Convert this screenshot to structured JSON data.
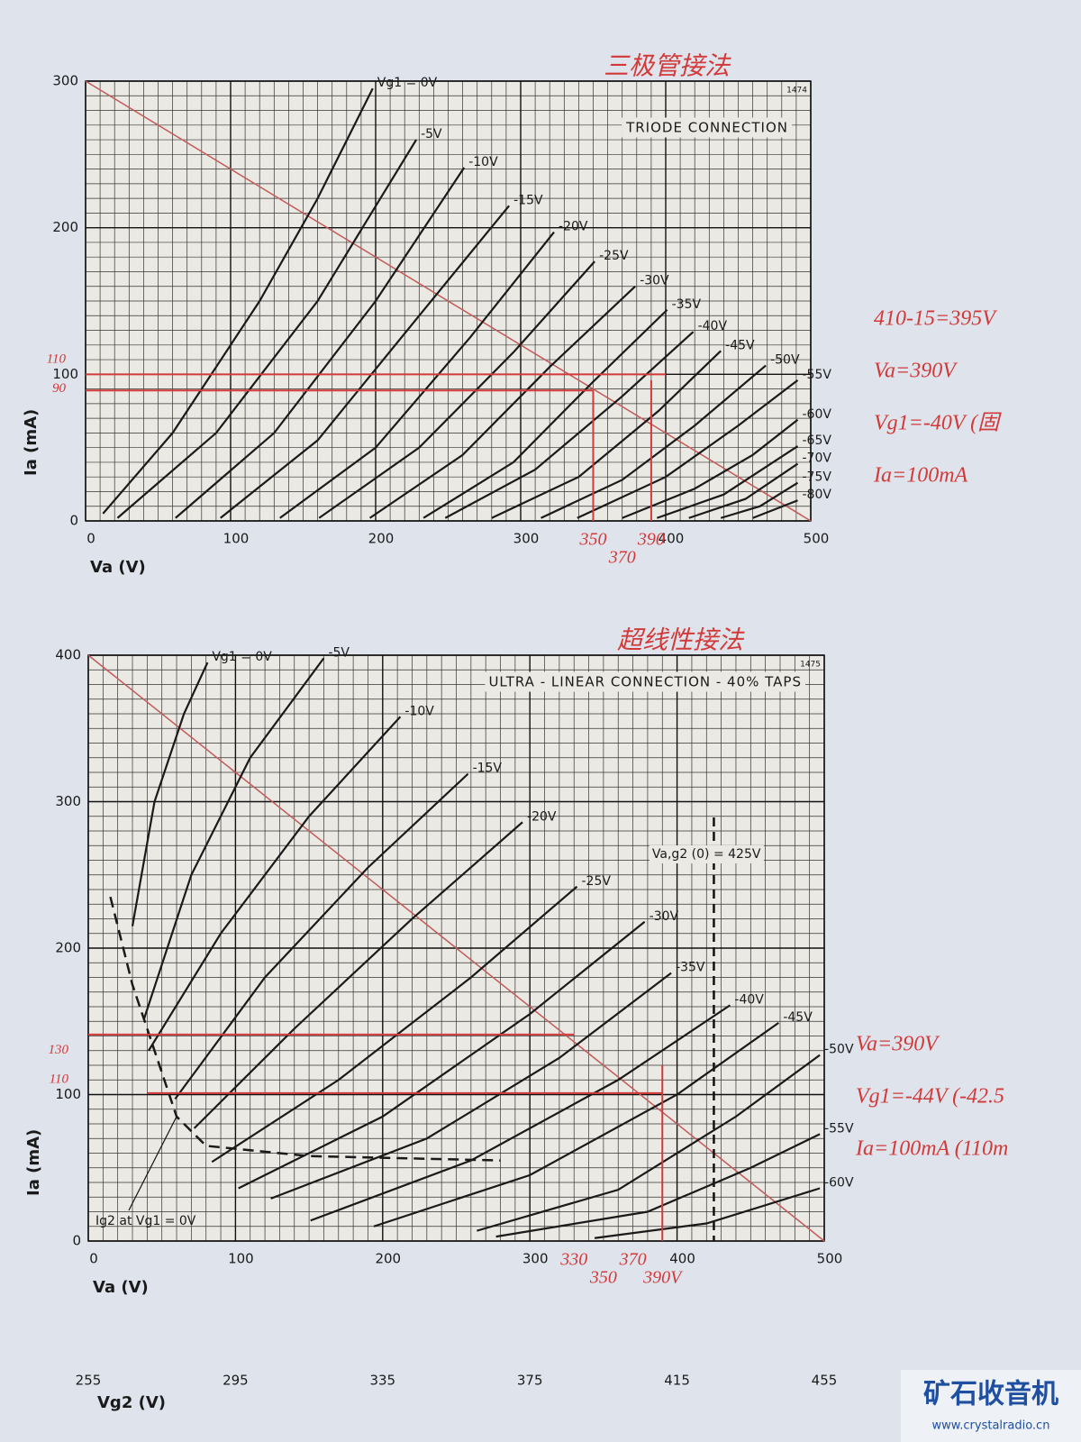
{
  "chart_data": [
    {
      "type": "line",
      "title": "TRIODE CONNECTION",
      "figure_number": "1474",
      "handwritten_title": "三极管接法",
      "x_label": "Va (V)",
      "y_label": "Ia (mA)",
      "xlim": [
        0,
        500
      ],
      "ylim": [
        0,
        300
      ],
      "xticks": [
        0,
        100,
        200,
        300,
        400,
        500
      ],
      "yticks": [
        0,
        100,
        200,
        300
      ],
      "grid": true,
      "series": [
        {
          "name": "Vg1 = 0V",
          "color": "#1a1a1a",
          "x": [
            12,
            60,
            120,
            160,
            198
          ],
          "values": [
            5,
            60,
            150,
            220,
            295
          ]
        },
        {
          "name": "-5V",
          "color": "#1a1a1a",
          "x": [
            22,
            90,
            160,
            228
          ],
          "values": [
            2,
            60,
            150,
            260
          ]
        },
        {
          "name": "-10V",
          "color": "#1a1a1a",
          "x": [
            62,
            130,
            200,
            261
          ],
          "values": [
            2,
            60,
            150,
            241
          ]
        },
        {
          "name": "-15V",
          "color": "#1a1a1a",
          "x": [
            93,
            160,
            230,
            292
          ],
          "values": [
            2,
            55,
            140,
            215
          ]
        },
        {
          "name": "-20V",
          "color": "#1a1a1a",
          "x": [
            134,
            200,
            265,
            323
          ],
          "values": [
            2,
            50,
            125,
            197
          ]
        },
        {
          "name": "-25V",
          "color": "#1a1a1a",
          "x": [
            161,
            230,
            295,
            351
          ],
          "values": [
            2,
            50,
            115,
            177
          ]
        },
        {
          "name": "-30V",
          "color": "#1a1a1a",
          "x": [
            196,
            260,
            320,
            379
          ],
          "values": [
            2,
            45,
            105,
            160
          ]
        },
        {
          "name": "-35V",
          "color": "#1a1a1a",
          "x": [
            233,
            295,
            350,
            401
          ],
          "values": [
            2,
            40,
            95,
            144
          ]
        },
        {
          "name": "-40V",
          "color": "#1a1a1a",
          "x": [
            248,
            310,
            370,
            419
          ],
          "values": [
            2,
            35,
            85,
            129
          ]
        },
        {
          "name": "-45V",
          "color": "#1a1a1a",
          "x": [
            280,
            340,
            395,
            438
          ],
          "values": [
            2,
            30,
            75,
            116
          ]
        },
        {
          "name": "-50V",
          "color": "#1a1a1a",
          "x": [
            314,
            370,
            420,
            469
          ],
          "values": [
            2,
            28,
            65,
            106
          ]
        },
        {
          "name": "-55V",
          "color": "#1a1a1a",
          "x": [
            339,
            400,
            450,
            491
          ],
          "values": [
            2,
            30,
            65,
            96
          ]
        },
        {
          "name": "-60V",
          "color": "#1a1a1a",
          "x": [
            370,
            420,
            460,
            491
          ],
          "values": [
            2,
            22,
            45,
            69
          ]
        },
        {
          "name": "-65V",
          "color": "#1a1a1a",
          "x": [
            394,
            440,
            491
          ],
          "values": [
            2,
            18,
            51
          ]
        },
        {
          "name": "-70V",
          "color": "#1a1a1a",
          "x": [
            416,
            455,
            491
          ],
          "values": [
            2,
            15,
            39
          ]
        },
        {
          "name": "-75V",
          "color": "#1a1a1a",
          "x": [
            438,
            465,
            491
          ],
          "values": [
            2,
            10,
            26
          ]
        },
        {
          "name": "-80V",
          "color": "#1a1a1a",
          "x": [
            460,
            491
          ],
          "values": [
            2,
            14
          ]
        }
      ],
      "load_line": {
        "color": "#c25a5a",
        "x": [
          0,
          500
        ],
        "values": [
          300,
          0
        ]
      },
      "ref_lines": [
        {
          "color": "#d23a3a",
          "x": [
            0,
            400
          ],
          "values": [
            100,
            100
          ]
        },
        {
          "color": "#d23a3a",
          "x": [
            0,
            350
          ],
          "values": [
            89,
            89
          ]
        },
        {
          "color": "#d23a3a",
          "x": [
            350,
            350
          ],
          "values": [
            0,
            89
          ]
        },
        {
          "color": "#d23a3a",
          "x": [
            390,
            390
          ],
          "values": [
            0,
            96
          ]
        }
      ],
      "marked_x": [
        350,
        370,
        390
      ],
      "marked_y": [
        110,
        90
      ]
    },
    {
      "type": "line",
      "title": "ULTRA - LINEAR CONNECTION - 40% TAPS",
      "figure_number": "1475",
      "handwritten_title": "超线性接法",
      "x_label": "Va (V)",
      "x2_label": "Vg2 (V)",
      "y_label": "Ia (mA)",
      "xlim": [
        0,
        500
      ],
      "ylim": [
        0,
        400
      ],
      "xticks": [
        0,
        100,
        200,
        300,
        400,
        500
      ],
      "yticks": [
        0,
        100,
        200,
        300,
        400
      ],
      "x2lim": [
        255,
        455
      ],
      "x2ticks": [
        255,
        295,
        335,
        375,
        415,
        455
      ],
      "grid": true,
      "series": [
        {
          "name": "Vg1 = 0V",
          "color": "#1a1a1a",
          "x": [
            30,
            45,
            65,
            81
          ],
          "values": [
            215,
            300,
            360,
            395
          ]
        },
        {
          "name": "-5V",
          "color": "#1a1a1a",
          "x": [
            38,
            70,
            110,
            160
          ],
          "values": [
            152,
            250,
            330,
            398
          ]
        },
        {
          "name": "-10V",
          "color": "#1a1a1a",
          "x": [
            41,
            90,
            150,
            212
          ],
          "values": [
            130,
            210,
            290,
            358
          ]
        },
        {
          "name": "-15V",
          "color": "#1a1a1a",
          "x": [
            59,
            120,
            190,
            258
          ],
          "values": [
            97,
            180,
            255,
            319
          ]
        },
        {
          "name": "-20V",
          "color": "#1a1a1a",
          "x": [
            72,
            140,
            220,
            295
          ],
          "values": [
            77,
            145,
            220,
            286
          ]
        },
        {
          "name": "-25V",
          "color": "#1a1a1a",
          "x": [
            84,
            170,
            260,
            332
          ],
          "values": [
            54,
            110,
            180,
            242
          ]
        },
        {
          "name": "-30V",
          "color": "#1a1a1a",
          "x": [
            102,
            200,
            300,
            378
          ],
          "values": [
            36,
            85,
            155,
            218
          ]
        },
        {
          "name": "-35V",
          "color": "#1a1a1a",
          "x": [
            124,
            230,
            320,
            396
          ],
          "values": [
            29,
            70,
            125,
            183
          ]
        },
        {
          "name": "-40V",
          "color": "#1a1a1a",
          "x": [
            151,
            260,
            360,
            436
          ],
          "values": [
            14,
            55,
            110,
            161
          ]
        },
        {
          "name": "-45V",
          "color": "#1a1a1a",
          "x": [
            194,
            300,
            400,
            469
          ],
          "values": [
            10,
            45,
            100,
            149
          ]
        },
        {
          "name": "-50V",
          "color": "#1a1a1a",
          "x": [
            264,
            360,
            440,
            497
          ],
          "values": [
            7,
            35,
            85,
            127
          ]
        },
        {
          "name": "-55V",
          "color": "#1a1a1a",
          "x": [
            277,
            380,
            450,
            497
          ],
          "values": [
            3,
            20,
            50,
            73
          ]
        },
        {
          "name": "-60V",
          "color": "#1a1a1a",
          "x": [
            344,
            420,
            497
          ],
          "values": [
            2,
            12,
            36
          ]
        },
        {
          "name": "Ig2 at Vg1 = 0V",
          "color": "#1a1a1a",
          "dashed": true,
          "x": [
            15,
            30,
            45,
            60,
            80,
            150,
            280
          ],
          "values": [
            235,
            175,
            130,
            85,
            65,
            58,
            55
          ]
        }
      ],
      "vline": {
        "x": 425,
        "label": "Va,g2 (0) = 425V"
      },
      "load_line": {
        "color": "#c25a5a",
        "x": [
          0,
          500
        ],
        "values": [
          400,
          0
        ]
      },
      "ref_lines": [
        {
          "color": "#d23a3a",
          "x": [
            0,
            330
          ],
          "values": [
            141,
            141
          ]
        },
        {
          "color": "#d23a3a",
          "x": [
            40,
            390
          ],
          "values": [
            101,
            101
          ]
        },
        {
          "color": "#d23a3a",
          "x": [
            390,
            390
          ],
          "values": [
            0,
            120
          ]
        }
      ],
      "marked_x": [
        330,
        350,
        370,
        {
          "value": 390,
          "label": "390V"
        }
      ],
      "marked_y": [
        130,
        110
      ]
    }
  ],
  "side_notes": [
    [
      "410-15=395V",
      "Va=390V",
      "Vg1=-40V (固",
      "Ia=100mA"
    ],
    [
      "Va=390V",
      "Vg1=-44V (-42.5",
      "Ia=100mA (110m"
    ]
  ],
  "watermark": {
    "name": "矿石收音机",
    "url": "www.crystalradio.cn"
  }
}
